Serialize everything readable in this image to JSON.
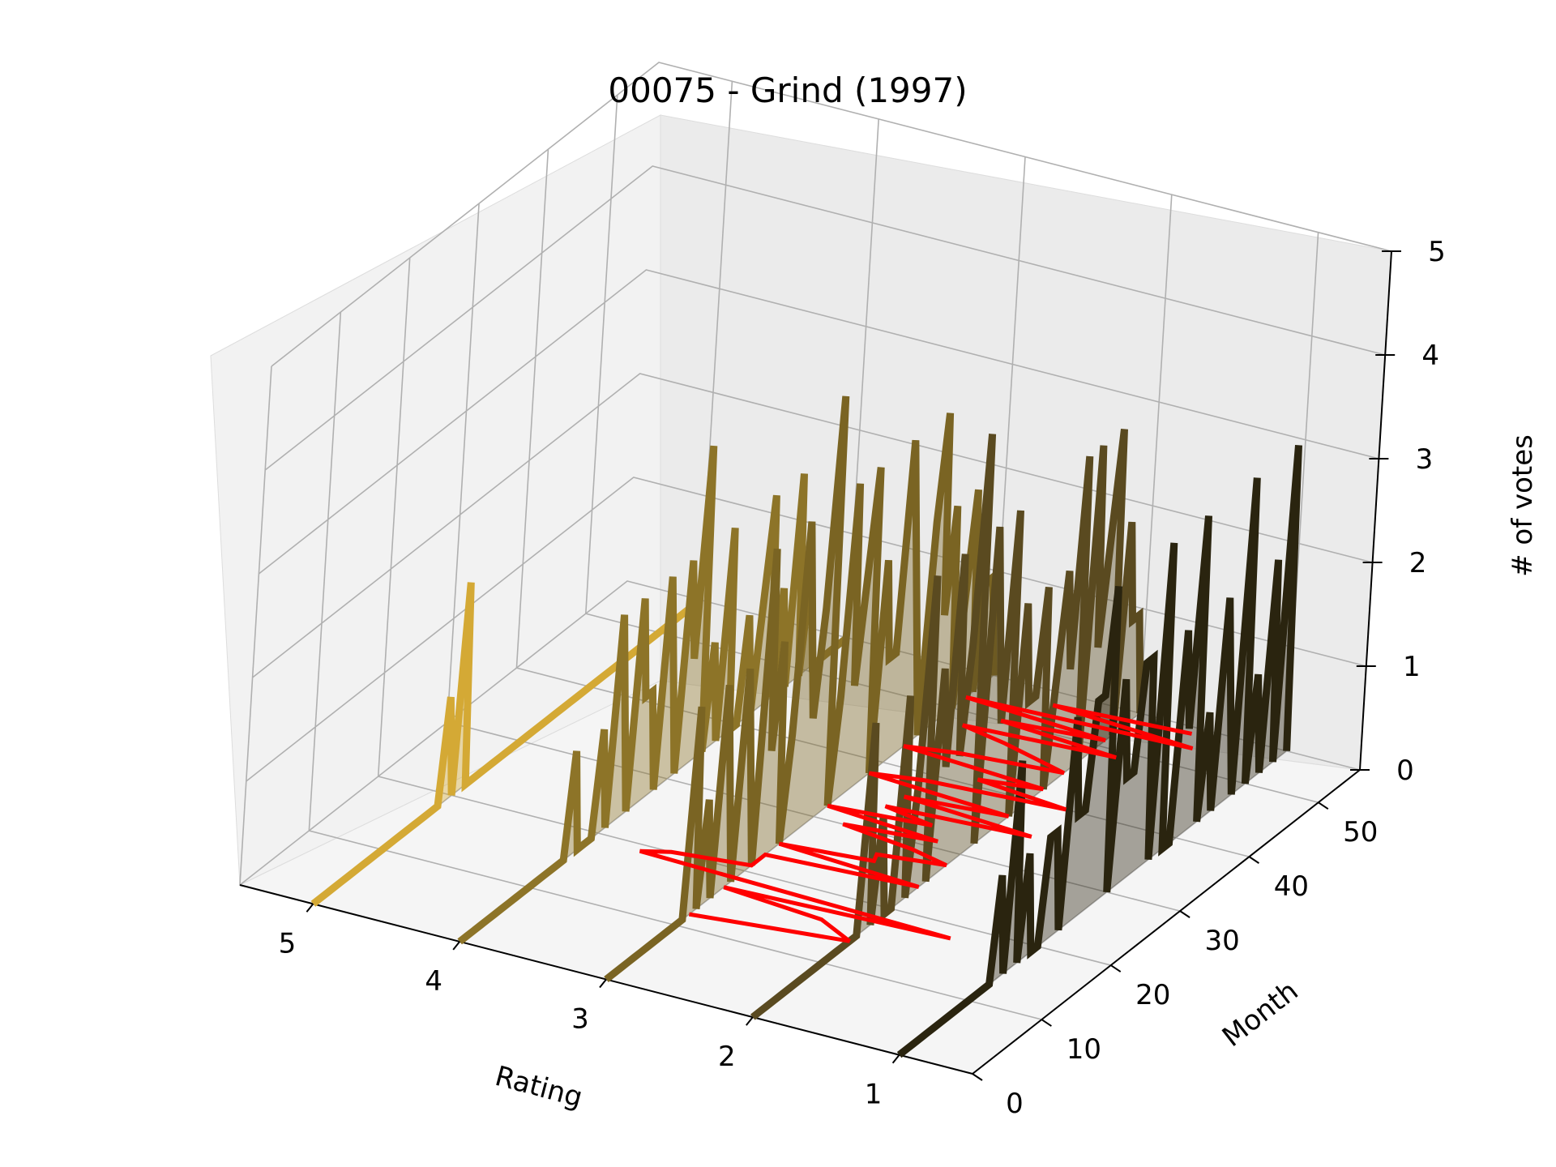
{
  "chart_data": {
    "type": "line",
    "projection": "3d",
    "title": "00075 - Grind (1997)",
    "xlabel": "Rating",
    "ylabel": "Month",
    "zlabel": "# of votes",
    "x_ticks": [
      "5",
      "4",
      "3",
      "2",
      "1"
    ],
    "y_ticks": [
      "0",
      "10",
      "20",
      "30",
      "40",
      "50"
    ],
    "z_ticks": [
      "0",
      "1",
      "2",
      "3",
      "4",
      "5"
    ],
    "xlim": [
      0.5,
      5.5
    ],
    "ylim": [
      0,
      56
    ],
    "zlim": [
      0,
      5
    ],
    "grid": true,
    "filled_area_under_lines": true,
    "series_colors": [
      "#2a240f",
      "#5a4a20",
      "#7a6423",
      "#8d7428",
      "#d4a935"
    ],
    "mean_line_color": "#ff0000",
    "series": [
      {
        "rating": 1,
        "color": "#2a240f",
        "values": [
          0,
          0,
          0,
          0,
          0,
          0,
          0,
          0,
          0,
          0,
          0,
          0,
          0,
          0,
          1,
          0,
          2,
          0,
          1,
          0,
          0,
          1,
          1,
          0,
          2,
          1,
          1,
          2,
          2,
          3,
          0,
          2,
          1,
          1,
          2,
          2,
          0,
          3,
          0,
          0,
          2,
          1,
          3,
          0,
          1,
          0,
          2,
          1,
          0,
          3,
          0,
          1,
          0,
          2,
          0,
          3,
          0
        ]
      },
      {
        "rating": 2,
        "color": "#5a4a20",
        "values": [
          0,
          0,
          0,
          0,
          0,
          0,
          0,
          0,
          0,
          0,
          0,
          0,
          0,
          0,
          0,
          0,
          2,
          0,
          1,
          0,
          0,
          2,
          0,
          1,
          3,
          0,
          2,
          1,
          3,
          1,
          2,
          4,
          0,
          3,
          2,
          1,
          3,
          0,
          2,
          1,
          1,
          2,
          0,
          1,
          2,
          1,
          3,
          0,
          3,
          1,
          2,
          3,
          0,
          2,
          1,
          1,
          0
        ]
      },
      {
        "rating": 3,
        "color": "#7a6423",
        "values": [
          0,
          0,
          0,
          0,
          0,
          0,
          0,
          0,
          0,
          0,
          0,
          0,
          2,
          0,
          1,
          0,
          2,
          1,
          0,
          2,
          1,
          0,
          3,
          1,
          2,
          0,
          1,
          3,
          2,
          1,
          2,
          4,
          0,
          1,
          3,
          1,
          2,
          3,
          0,
          2,
          1,
          1,
          3,
          2,
          1,
          0,
          2,
          3,
          1,
          2,
          0,
          1,
          2,
          0,
          1,
          1,
          0
        ]
      },
      {
        "rating": 4,
        "color": "#8d7428",
        "values": [
          0,
          0,
          0,
          0,
          0,
          0,
          0,
          0,
          0,
          0,
          0,
          0,
          0,
          0,
          0,
          0,
          1,
          0,
          0,
          0,
          1,
          0,
          2,
          1,
          0,
          2,
          1,
          1,
          0,
          2,
          1,
          0,
          2,
          1,
          3,
          0,
          1,
          0,
          2,
          0,
          0,
          1,
          0,
          1,
          2,
          0,
          1,
          0,
          2,
          0,
          1,
          0,
          0,
          0,
          0,
          0,
          0
        ]
      },
      {
        "rating": 5,
        "color": "#d4a935",
        "values": [
          0,
          0,
          0,
          0,
          0,
          0,
          0,
          0,
          0,
          0,
          0,
          0,
          0,
          0,
          0,
          0,
          0,
          0,
          0,
          1,
          0,
          2,
          0,
          0,
          0,
          0,
          0,
          0,
          0,
          0,
          0,
          0,
          0,
          0,
          0,
          0,
          0,
          0,
          0,
          0,
          0,
          0,
          0,
          0,
          0,
          0,
          0,
          0,
          0,
          0,
          0,
          0,
          0,
          0,
          0,
          0,
          0
        ]
      }
    ]
  }
}
